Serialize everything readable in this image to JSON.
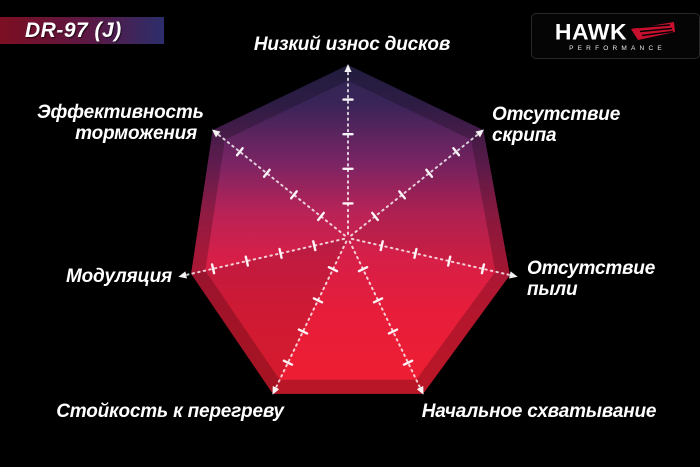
{
  "product_badge": {
    "label": "DR-97 (J)"
  },
  "brand": {
    "name": "HAWK",
    "subtitle": "PERFORMANCE"
  },
  "colors": {
    "background": "#000000",
    "banner_gradient_left": "#7c0f22",
    "banner_gradient_right": "#2c2e6b",
    "brand_red": "#c8102e",
    "axis_white": "#ffffff",
    "gem_gradient": [
      "#2b2650",
      "#3a2458",
      "#7b2464",
      "#b92356",
      "#d61f48",
      "#e71d3a",
      "#ef1e31"
    ]
  },
  "chart_data": {
    "type": "radar",
    "title": "DR-97 (J)",
    "scale_max": 5,
    "ticks_per_axis": 4,
    "grid": false,
    "legend": "none",
    "axes": [
      {
        "label": "Низкий износ дисков",
        "value": 5.0
      },
      {
        "label": "Отсутствие скрипа",
        "value": 5.0
      },
      {
        "label": "Отсутствие пыли",
        "value": 4.8
      },
      {
        "label": "Начальное схватывание",
        "value": 5.0
      },
      {
        "label": "Стойкость к перегреву",
        "value": 5.0
      },
      {
        "label": "Модуляция",
        "value": 4.65
      },
      {
        "label": "Эффективность торможения",
        "value": 5.0
      }
    ]
  }
}
